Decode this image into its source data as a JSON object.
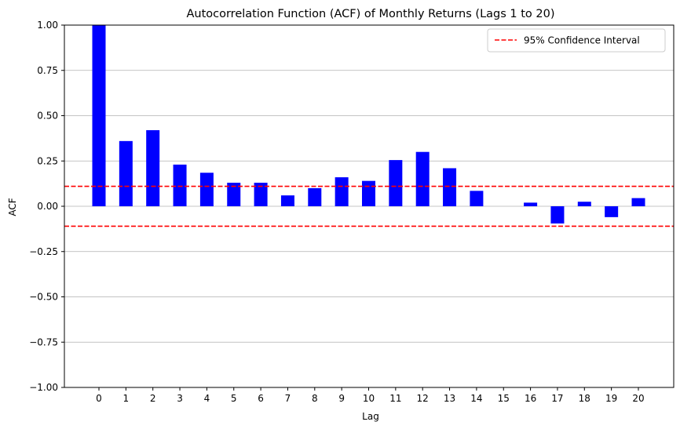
{
  "chart_data": {
    "type": "bar",
    "title": "Autocorrelation Function (ACF) of Monthly Returns (Lags 1 to 20)",
    "xlabel": "Lag",
    "ylabel": "ACF",
    "categories": [
      "0",
      "1",
      "2",
      "3",
      "4",
      "5",
      "6",
      "7",
      "8",
      "9",
      "10",
      "11",
      "12",
      "13",
      "14",
      "15",
      "16",
      "17",
      "18",
      "19",
      "20"
    ],
    "values": [
      1.0,
      0.36,
      0.42,
      0.23,
      0.185,
      0.13,
      0.13,
      0.06,
      0.1,
      0.16,
      0.14,
      0.255,
      0.3,
      0.21,
      0.085,
      0.0,
      0.02,
      -0.095,
      0.025,
      -0.06,
      0.045
    ],
    "ylim": [
      -1.0,
      1.0
    ],
    "y_ticks": [
      "−1.00",
      "−0.75",
      "−0.50",
      "−0.25",
      "0.00",
      "0.25",
      "0.50",
      "0.75",
      "1.00"
    ],
    "y_tick_values": [
      -1.0,
      -0.75,
      -0.5,
      -0.25,
      0.0,
      0.25,
      0.5,
      0.75,
      1.0
    ],
    "confidence_interval": 0.11,
    "legend": {
      "label": "95% Confidence Interval",
      "placement": "top-right"
    },
    "grid": "horizontal",
    "colors": {
      "bar": "#0000ff",
      "ci_line": "#ff0000",
      "grid": "#b0b0b0",
      "axis": "#000000"
    }
  }
}
